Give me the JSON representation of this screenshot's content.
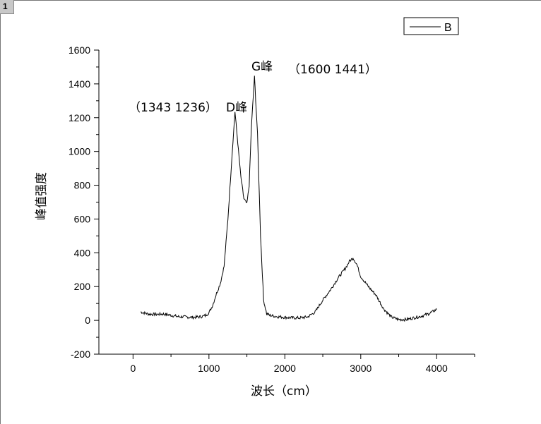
{
  "page": {
    "tab_label": "1"
  },
  "chart_data": {
    "type": "line",
    "title": "",
    "xlabel": "波长（cm）",
    "ylabel": "峰值强度",
    "xlim": [
      -450,
      4500
    ],
    "ylim": [
      -200,
      1600
    ],
    "x_ticks": [
      0,
      1000,
      2000,
      3000,
      4000
    ],
    "x_tick_labels": [
      "0",
      "1000",
      "2000",
      "3000",
      "4000"
    ],
    "y_ticks": [
      -200,
      0,
      200,
      400,
      600,
      800,
      1000,
      1200,
      1400,
      1600
    ],
    "y_tick_labels": [
      "-200",
      "0",
      "200",
      "400",
      "600",
      "800",
      "1000",
      "1200",
      "1400",
      "1600"
    ],
    "grid": false,
    "legend": {
      "position": "top-right",
      "entries": [
        "B"
      ]
    },
    "series": [
      {
        "name": "B",
        "color": "#000000",
        "x": [
          100,
          200,
          300,
          400,
          500,
          600,
          700,
          800,
          900,
          950,
          1000,
          1050,
          1100,
          1150,
          1200,
          1250,
          1300,
          1343,
          1380,
          1420,
          1460,
          1500,
          1530,
          1560,
          1600,
          1640,
          1680,
          1720,
          1760,
          1800,
          1900,
          2000,
          2100,
          2200,
          2300,
          2400,
          2500,
          2600,
          2700,
          2800,
          2850,
          2900,
          2950,
          3000,
          3100,
          3200,
          3300,
          3400,
          3500,
          3600,
          3700,
          3800,
          3900,
          4000
        ],
        "y": [
          50,
          38,
          35,
          38,
          30,
          22,
          20,
          18,
          22,
          28,
          45,
          90,
          160,
          220,
          320,
          600,
          950,
          1236,
          1050,
          850,
          720,
          690,
          800,
          1150,
          1441,
          1100,
          500,
          120,
          40,
          30,
          22,
          18,
          15,
          15,
          20,
          50,
          120,
          180,
          250,
          310,
          350,
          370,
          330,
          260,
          200,
          150,
          70,
          20,
          5,
          5,
          15,
          25,
          40,
          65
        ]
      }
    ],
    "annotations": [
      {
        "text": "（1343 1236）"
      },
      {
        "text": "D峰"
      },
      {
        "text": "G峰"
      },
      {
        "text": "（1600 1441）"
      }
    ]
  }
}
